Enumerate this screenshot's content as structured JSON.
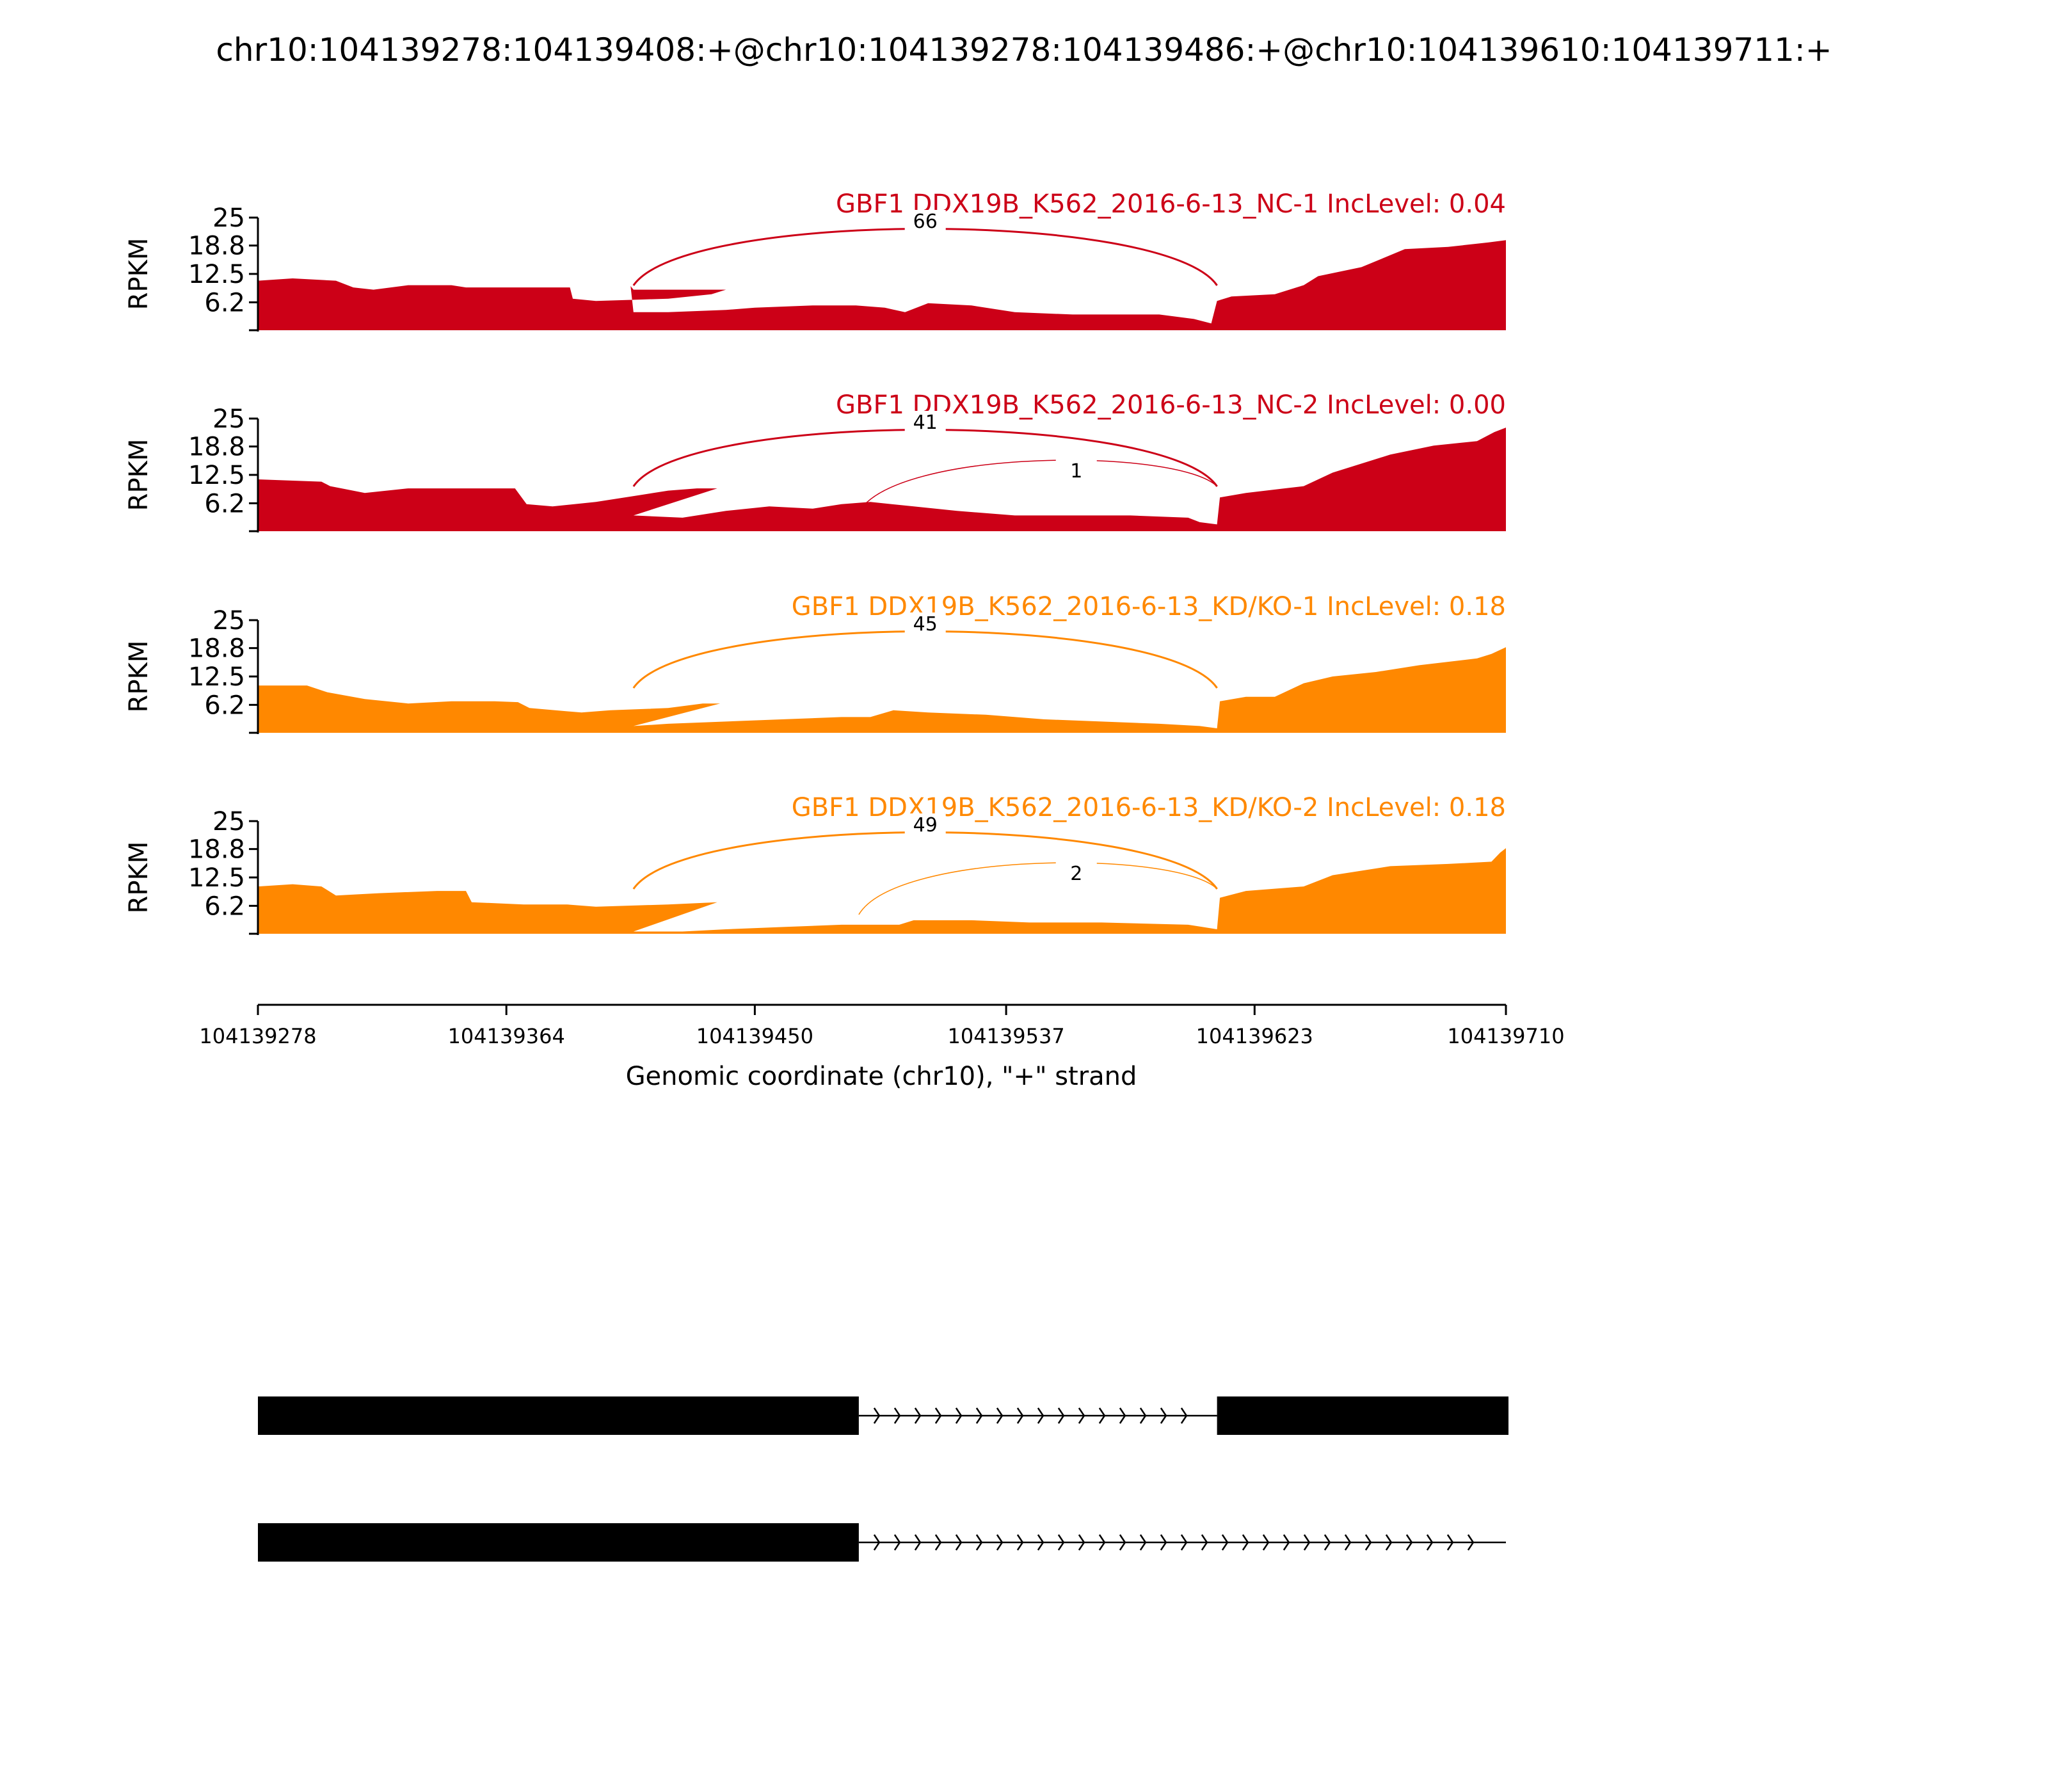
{
  "chart_data": {
    "type": "area",
    "title": "chr10:104139278:104139408:+@chr10:104139278:104139486:+@chr10:104139610:104139711:+",
    "xlabel": "Genomic coordinate (chr10), \"+\" strand",
    "ylabel": "RPKM",
    "xlim": [
      104139278,
      104139710
    ],
    "ylim": [
      0,
      25
    ],
    "x_ticks": [
      "104139278",
      "104139364",
      "104139450",
      "104139537",
      "104139623",
      "104139710"
    ],
    "y_ticks": [
      "25",
      "18.8",
      "12.5",
      "6.2"
    ],
    "colors": {
      "NC": "#cc0017",
      "KD": "#ff8800"
    },
    "tracks": [
      {
        "label": "GBF1 DDX19B_K562_2016-6-13_NC-1 IncLevel: 0.04",
        "group": "NC",
        "coverage": [
          [
            104139278,
            11
          ],
          [
            104139290,
            11.5
          ],
          [
            104139305,
            11
          ],
          [
            104139311,
            9.5
          ],
          [
            104139318,
            9
          ],
          [
            104139330,
            10
          ],
          [
            104139345,
            10
          ],
          [
            104139350,
            9.5
          ],
          [
            104139365,
            9.5
          ],
          [
            104139386,
            9.5
          ],
          [
            104139387,
            7
          ],
          [
            104139395,
            6.5
          ],
          [
            104139410,
            6.8
          ],
          [
            104139420,
            7
          ],
          [
            104139435,
            8
          ],
          [
            104139440,
            9
          ],
          [
            104139408,
            9
          ],
          [
            104139407,
            9.8
          ],
          [
            104139408,
            4
          ],
          [
            104139420,
            4
          ],
          [
            104139440,
            4.5
          ],
          [
            104139450,
            5
          ],
          [
            104139470,
            5.5
          ],
          [
            104139485,
            5.5
          ],
          [
            104139495,
            5
          ],
          [
            104139502,
            4
          ],
          [
            104139510,
            6
          ],
          [
            104139525,
            5.5
          ],
          [
            104139540,
            4
          ],
          [
            104139560,
            3.5
          ],
          [
            104139590,
            3.5
          ],
          [
            104139602,
            2.5
          ],
          [
            104139608,
            1.5
          ],
          [
            104139610,
            6.5
          ],
          [
            104139615,
            7.5
          ],
          [
            104139630,
            8
          ],
          [
            104139640,
            10
          ],
          [
            104139645,
            12
          ],
          [
            104139660,
            14
          ],
          [
            104139675,
            18
          ],
          [
            104139690,
            18.5
          ],
          [
            104139704,
            19.5
          ],
          [
            104139710,
            20
          ]
        ],
        "junctions": [
          {
            "start": 104139408,
            "end": 104139610,
            "count": "66"
          }
        ]
      },
      {
        "label": "GBF1 DDX19B_K562_2016-6-13_NC-2 IncLevel: 0.00",
        "group": "NC",
        "coverage": [
          [
            104139278,
            11.5
          ],
          [
            104139300,
            11
          ],
          [
            104139303,
            10
          ],
          [
            104139315,
            8.5
          ],
          [
            104139330,
            9.5
          ],
          [
            104139350,
            9.5
          ],
          [
            104139367,
            9.5
          ],
          [
            104139371,
            6
          ],
          [
            104139380,
            5.5
          ],
          [
            104139395,
            6.5
          ],
          [
            104139410,
            8
          ],
          [
            104139420,
            9
          ],
          [
            104139430,
            9.5
          ],
          [
            104139437,
            9.5
          ],
          [
            104139408,
            3.5
          ],
          [
            104139425,
            3
          ],
          [
            104139440,
            4.5
          ],
          [
            104139455,
            5.5
          ],
          [
            104139470,
            5
          ],
          [
            104139480,
            6
          ],
          [
            104139490,
            6.5
          ],
          [
            104139505,
            5.5
          ],
          [
            104139520,
            4.5
          ],
          [
            104139540,
            3.5
          ],
          [
            104139565,
            3.5
          ],
          [
            104139580,
            3.5
          ],
          [
            104139600,
            3
          ],
          [
            104139604,
            2
          ],
          [
            104139610,
            1.5
          ],
          [
            104139611,
            7.5
          ],
          [
            104139620,
            8.5
          ],
          [
            104139640,
            10
          ],
          [
            104139650,
            13
          ],
          [
            104139670,
            17
          ],
          [
            104139685,
            19
          ],
          [
            104139700,
            20
          ],
          [
            104139706,
            22
          ],
          [
            104139710,
            23
          ]
        ],
        "junctions": [
          {
            "start": 104139408,
            "end": 104139610,
            "count": "41"
          },
          {
            "start": 104139486,
            "end": 104139610,
            "count": "1"
          }
        ]
      },
      {
        "label": "GBF1 DDX19B_K562_2016-6-13_KD/KO-1 IncLevel: 0.18",
        "group": "KD",
        "coverage": [
          [
            104139278,
            10.5
          ],
          [
            104139295,
            10.5
          ],
          [
            104139302,
            9
          ],
          [
            104139315,
            7.5
          ],
          [
            104139330,
            6.5
          ],
          [
            104139345,
            7
          ],
          [
            104139360,
            7
          ],
          [
            104139368,
            6.8
          ],
          [
            104139372,
            5.5
          ],
          [
            104139390,
            4.5
          ],
          [
            104139400,
            5
          ],
          [
            104139420,
            5.5
          ],
          [
            104139432,
            6.5
          ],
          [
            104139438,
            6.5
          ],
          [
            104139408,
            1.5
          ],
          [
            104139420,
            2
          ],
          [
            104139440,
            2.5
          ],
          [
            104139460,
            3
          ],
          [
            104139480,
            3.5
          ],
          [
            104139490,
            3.5
          ],
          [
            104139498,
            5
          ],
          [
            104139510,
            4.5
          ],
          [
            104139530,
            4
          ],
          [
            104139550,
            3
          ],
          [
            104139570,
            2.5
          ],
          [
            104139590,
            2
          ],
          [
            104139604,
            1.5
          ],
          [
            104139610,
            1
          ],
          [
            104139611,
            7
          ],
          [
            104139620,
            8
          ],
          [
            104139630,
            8
          ],
          [
            104139640,
            11
          ],
          [
            104139650,
            12.5
          ],
          [
            104139665,
            13.5
          ],
          [
            104139680,
            15
          ],
          [
            104139700,
            16.5
          ],
          [
            104139705,
            17.5
          ],
          [
            104139710,
            19
          ]
        ],
        "junctions": [
          {
            "start": 104139408,
            "end": 104139610,
            "count": "45"
          }
        ]
      },
      {
        "label": "GBF1 DDX19B_K562_2016-6-13_KD/KO-2 IncLevel: 0.18",
        "group": "KD",
        "coverage": [
          [
            104139278,
            10.5
          ],
          [
            104139290,
            11
          ],
          [
            104139300,
            10.5
          ],
          [
            104139305,
            8.5
          ],
          [
            104139320,
            9
          ],
          [
            104139340,
            9.5
          ],
          [
            104139350,
            9.5
          ],
          [
            104139352,
            7
          ],
          [
            104139370,
            6.5
          ],
          [
            104139385,
            6.5
          ],
          [
            104139395,
            6
          ],
          [
            104139420,
            6.5
          ],
          [
            104139437,
            7
          ],
          [
            104139408,
            0.5
          ],
          [
            104139425,
            0.5
          ],
          [
            104139440,
            1
          ],
          [
            104139460,
            1.5
          ],
          [
            104139480,
            2
          ],
          [
            104139500,
            2
          ],
          [
            104139505,
            3
          ],
          [
            104139525,
            3
          ],
          [
            104139545,
            2.5
          ],
          [
            104139570,
            2.5
          ],
          [
            104139600,
            2
          ],
          [
            104139605,
            1.5
          ],
          [
            104139610,
            1
          ],
          [
            104139611,
            8
          ],
          [
            104139620,
            9.5
          ],
          [
            104139640,
            10.5
          ],
          [
            104139650,
            13
          ],
          [
            104139670,
            15
          ],
          [
            104139690,
            15.5
          ],
          [
            104139705,
            16
          ],
          [
            104139708,
            18
          ],
          [
            104139710,
            19
          ]
        ],
        "junctions": [
          {
            "start": 104139408,
            "end": 104139610,
            "count": "49"
          },
          {
            "start": 104139486,
            "end": 104139610,
            "count": "2"
          }
        ]
      }
    ],
    "transcripts": [
      {
        "exons": [
          [
            104139278,
            104139486
          ],
          [
            104139610,
            104139711
          ]
        ],
        "intron": [
          104139486,
          104139610
        ]
      },
      {
        "exons": [
          [
            104139278,
            104139486
          ]
        ],
        "intron": [
          104139486,
          104139710
        ]
      }
    ]
  }
}
